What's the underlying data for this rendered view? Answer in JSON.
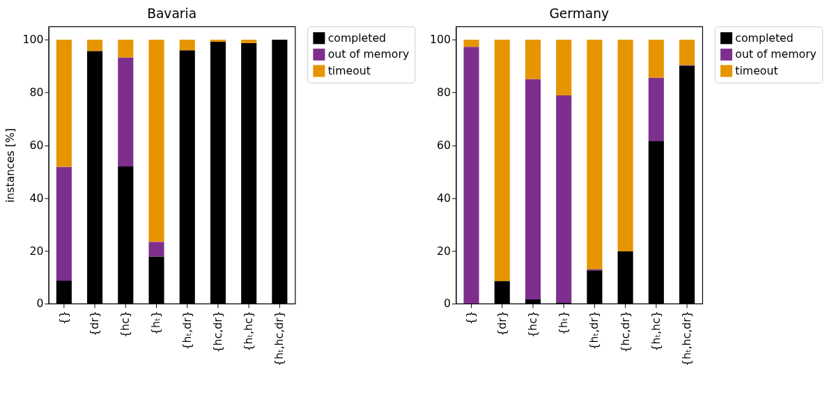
{
  "chart_data": [
    {
      "type": "bar",
      "stacked": true,
      "title": "Bavaria",
      "ylabel": "instances [%]",
      "categories": [
        "{}",
        "{dr}",
        "{hc}",
        "{hₜ}",
        "{hₜ,dr}",
        "{hc,dr}",
        "{hₜ,hc}",
        "{hₜ,hc,dr}"
      ],
      "series": [
        {
          "name": "completed",
          "color": "#000000",
          "values": [
            8.7,
            95.7,
            52.0,
            17.8,
            96.0,
            99.2,
            98.7,
            100
          ]
        },
        {
          "name": "out of memory",
          "color": "#7e2f8e",
          "values": [
            43.1,
            0,
            41.3,
            5.6,
            0,
            0,
            0,
            0
          ]
        },
        {
          "name": "timeout",
          "color": "#e69500",
          "values": [
            48.2,
            4.3,
            6.7,
            76.6,
            4.0,
            0.8,
            1.3,
            0
          ]
        }
      ],
      "ylim": [
        0,
        105
      ],
      "yticks": [
        0,
        20,
        40,
        60,
        80,
        100
      ],
      "legend": "right"
    },
    {
      "type": "bar",
      "stacked": true,
      "title": "Germany",
      "categories": [
        "{}",
        "{dr}",
        "{hc}",
        "{hₜ}",
        "{hₜ,dr}",
        "{hc,dr}",
        "{hₜ,hc}",
        "{hₜ,hc,dr}"
      ],
      "series": [
        {
          "name": "completed",
          "color": "#000000",
          "values": [
            0,
            8.6,
            1.6,
            0.3,
            12.6,
            19.8,
            61.7,
            90.2
          ]
        },
        {
          "name": "out of memory",
          "color": "#7e2f8e",
          "values": [
            97.3,
            0,
            83.5,
            78.6,
            0.5,
            0,
            23.9,
            0.2
          ]
        },
        {
          "name": "timeout",
          "color": "#e69500",
          "values": [
            2.7,
            91.4,
            14.9,
            21.1,
            86.9,
            80.2,
            14.4,
            9.6
          ]
        }
      ],
      "ylim": [
        0,
        105
      ],
      "yticks": [
        0,
        20,
        40,
        60,
        80,
        100
      ],
      "legend": "right"
    }
  ]
}
